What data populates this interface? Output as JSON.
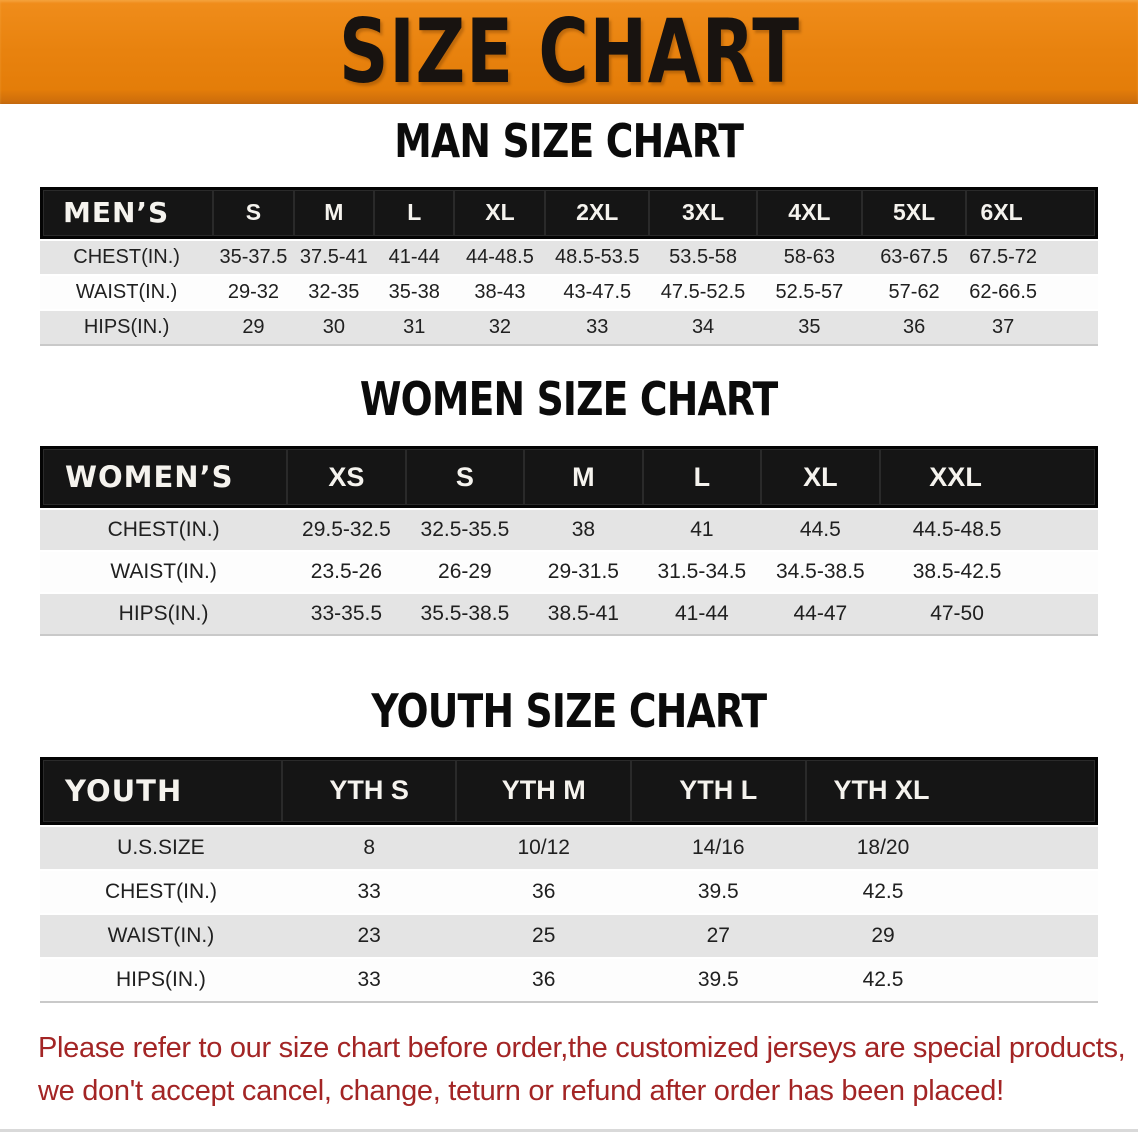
{
  "banner": {
    "title": "SIZE CHART",
    "bg_color": "#e8820e",
    "text_color": "#181310"
  },
  "colors": {
    "header_row_bg": "#151515",
    "stripe_gray": "#e4e4e4",
    "stripe_white": "#fdfdfd",
    "notice_red": "#a32525"
  },
  "sections": [
    {
      "heading": "MAN SIZE CHART",
      "table": {
        "header_label": "MEN’S",
        "columns": [
          "S",
          "M",
          "L",
          "XL",
          "2XL",
          "3XL",
          "4XL",
          "5XL",
          "6XL"
        ],
        "rows": [
          {
            "label": "CHEST(IN.)",
            "values": [
              "35-37.5",
              "37.5-41",
              "41-44",
              "44-48.5",
              "48.5-53.5",
              "53.5-58",
              "58-63",
              "63-67.5",
              "67.5-72"
            ]
          },
          {
            "label": "WAIST(IN.)",
            "values": [
              "29-32",
              "32-35",
              "35-38",
              "38-43",
              "43-47.5",
              "47.5-52.5",
              "52.5-57",
              "57-62",
              "62-66.5"
            ]
          },
          {
            "label": "HIPS(IN.)",
            "values": [
              "29",
              "30",
              "31",
              "32",
              "33",
              "34",
              "35",
              "36",
              "37"
            ]
          }
        ]
      }
    },
    {
      "heading": "WOMEN SIZE CHART",
      "table": {
        "header_label": "WOMEN’S",
        "columns": [
          "XS",
          "S",
          "M",
          "L",
          "XL",
          "XXL"
        ],
        "rows": [
          {
            "label": "CHEST(IN.)",
            "values": [
              "29.5-32.5",
              "32.5-35.5",
              "38",
              "41",
              "44.5",
              "44.5-48.5"
            ]
          },
          {
            "label": "WAIST(IN.)",
            "values": [
              "23.5-26",
              "26-29",
              "29-31.5",
              "31.5-34.5",
              "34.5-38.5",
              "38.5-42.5"
            ]
          },
          {
            "label": "HIPS(IN.)",
            "values": [
              "33-35.5",
              "35.5-38.5",
              "38.5-41",
              "41-44",
              "44-47",
              "47-50"
            ]
          }
        ]
      }
    },
    {
      "heading": "YOUTH SIZE CHART",
      "table": {
        "header_label": "YOUTH",
        "columns": [
          "YTH S",
          "YTH M",
          "YTH L",
          "YTH XL"
        ],
        "rows": [
          {
            "label": "U.S.SIZE",
            "values": [
              "8",
              "10/12",
              "14/16",
              "18/20"
            ]
          },
          {
            "label": "CHEST(IN.)",
            "values": [
              "33",
              "36",
              "39.5",
              "42.5"
            ]
          },
          {
            "label": "WAIST(IN.)",
            "values": [
              "23",
              "25",
              "27",
              "29"
            ]
          },
          {
            "label": "HIPS(IN.)",
            "values": [
              "33",
              "36",
              "39.5",
              "42.5"
            ]
          }
        ]
      }
    }
  ],
  "footer": {
    "line1": "Please refer to our size chart before order,the customized jerseys are special products,",
    "line2": "we don't accept cancel, change, teturn or refund after order has been placed!"
  }
}
